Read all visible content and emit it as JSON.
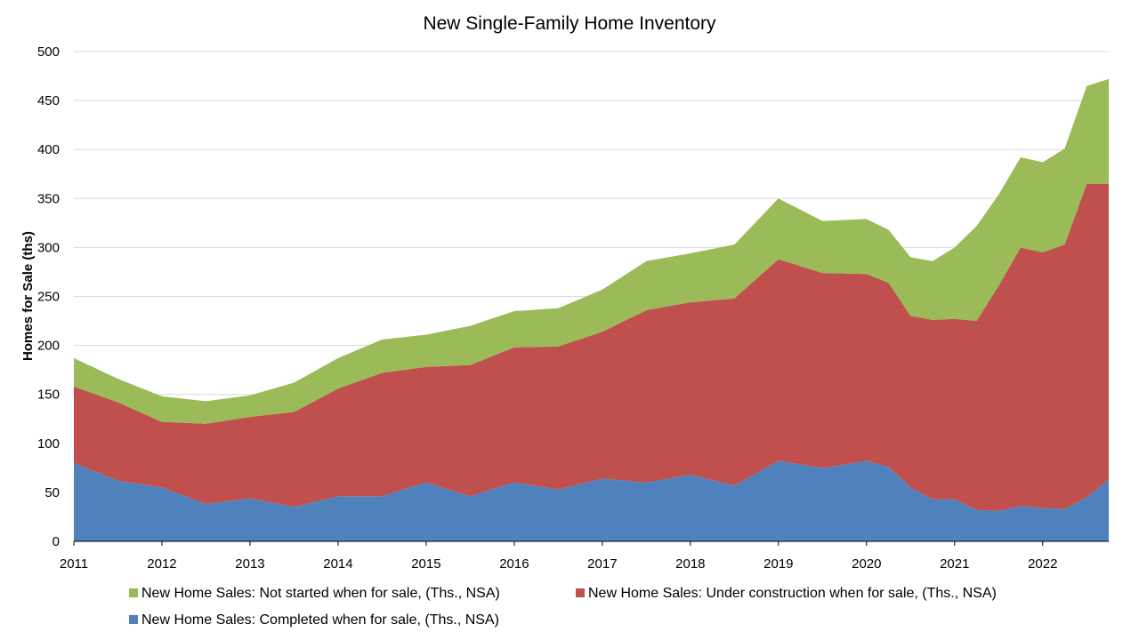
{
  "chart_data": {
    "type": "area",
    "stacked": true,
    "title": "New Single-Family Home Inventory",
    "ylabel": "Homes for Sale (ths)",
    "xlabel": "",
    "ylim": [
      0,
      500
    ],
    "yticks": [
      0,
      50,
      100,
      150,
      200,
      250,
      300,
      350,
      400,
      450,
      500
    ],
    "xlim": [
      2011.0,
      2022.75
    ],
    "xticks": [
      "2011",
      "2012",
      "2013",
      "2014",
      "2015",
      "2016",
      "2017",
      "2018",
      "2019",
      "2020",
      "2021",
      "2022"
    ],
    "grid": "horizontal",
    "legend_position": "bottom",
    "x": [
      2011.0,
      2011.5,
      2012.0,
      2012.5,
      2013.0,
      2013.5,
      2014.0,
      2014.5,
      2015.0,
      2015.5,
      2016.0,
      2016.5,
      2017.0,
      2017.5,
      2018.0,
      2018.5,
      2019.0,
      2019.5,
      2020.0,
      2020.25,
      2020.5,
      2020.75,
      2021.0,
      2021.25,
      2021.5,
      2021.75,
      2022.0,
      2022.25,
      2022.5,
      2022.75
    ],
    "series": [
      {
        "name": "New Home Sales: Completed when for sale, (Ths., NSA)",
        "color": "#4f81bd",
        "values": [
          80,
          62,
          55,
          38,
          44,
          35,
          46,
          46,
          60,
          46,
          60,
          53,
          64,
          60,
          68,
          57,
          82,
          75,
          82,
          76,
          55,
          43,
          43,
          32,
          31,
          36,
          34,
          33,
          45,
          63
        ]
      },
      {
        "name": "New Home Sales: Under construction when for sale, (Ths., NSA)",
        "color": "#c0504d",
        "values": [
          78,
          80,
          67,
          82,
          83,
          97,
          110,
          126,
          118,
          134,
          138,
          146,
          150,
          176,
          176,
          191,
          206,
          199,
          191,
          188,
          175,
          183,
          184,
          193,
          230,
          264,
          261,
          270,
          320,
          302
        ]
      },
      {
        "name": "New Home Sales: Not started when for sale, (Ths., NSA)",
        "color": "#9bbb59",
        "values": [
          29,
          24,
          26,
          23,
          22,
          30,
          31,
          34,
          33,
          40,
          37,
          39,
          43,
          50,
          50,
          55,
          62,
          53,
          56,
          54,
          60,
          60,
          73,
          97,
          93,
          92,
          92,
          98,
          100,
          107
        ]
      }
    ],
    "legend": [
      "New Home Sales: Not started when for sale, (Ths., NSA)",
      "New Home Sales: Under construction when for sale, (Ths., NSA)",
      "New Home Sales: Completed when for sale, (Ths., NSA)"
    ]
  }
}
